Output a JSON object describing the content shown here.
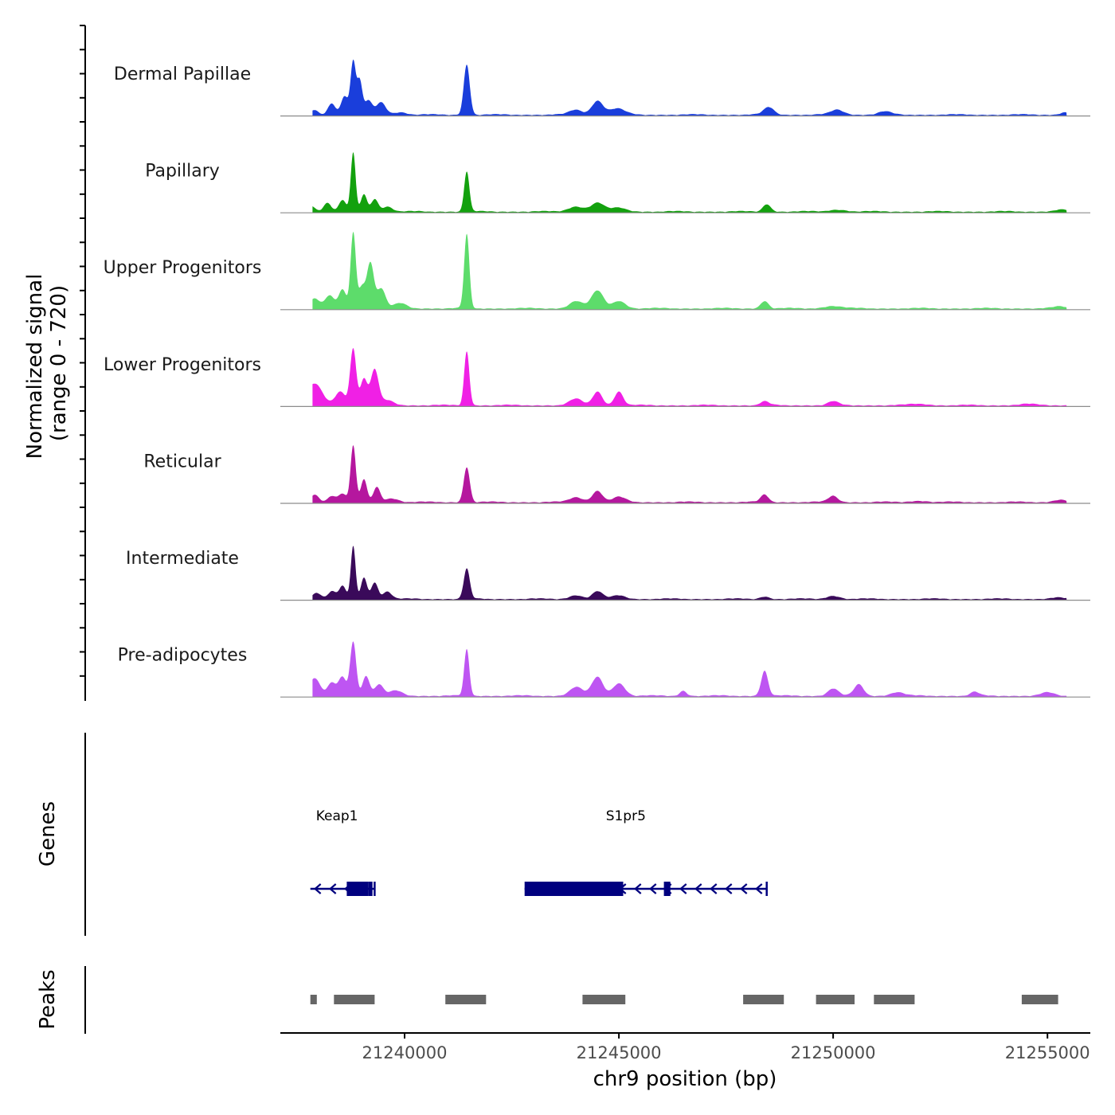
{
  "chart_data": {
    "type": "area",
    "title": "",
    "ylabel_line1": "Normalized signal",
    "ylabel_line2": "(range 0 - 720)",
    "ylim": [
      0,
      720
    ],
    "xlabel": "chr9 position (bp)",
    "xlim": [
      21237100,
      21256000
    ],
    "x_ticks": [
      21240000,
      21245000,
      21250000,
      21255000
    ],
    "x_tick_labels": [
      "21240000",
      "21245000",
      "21250000",
      "21255000"
    ],
    "series": [
      {
        "name": "Dermal Papillae",
        "color": "#1A3EDB",
        "peaks": [
          [
            21237900,
            40,
            80
          ],
          [
            21238300,
            90,
            90
          ],
          [
            21238600,
            150,
            80
          ],
          [
            21238800,
            420,
            60
          ],
          [
            21238950,
            260,
            60
          ],
          [
            21239150,
            110,
            90
          ],
          [
            21239450,
            100,
            110
          ],
          [
            21239900,
            20,
            150
          ],
          [
            21241450,
            400,
            70
          ],
          [
            21244000,
            40,
            150
          ],
          [
            21244500,
            110,
            130
          ],
          [
            21244950,
            50,
            180
          ],
          [
            21248500,
            60,
            120
          ],
          [
            21250100,
            40,
            150
          ],
          [
            21251200,
            25,
            150
          ],
          [
            21255400,
            20,
            100
          ]
        ]
      },
      {
        "name": "Papillary",
        "color": "#13A10E",
        "peaks": [
          [
            21237800,
            50,
            100
          ],
          [
            21238200,
            70,
            90
          ],
          [
            21238550,
            90,
            80
          ],
          [
            21238800,
            470,
            55
          ],
          [
            21239050,
            140,
            70
          ],
          [
            21239300,
            100,
            80
          ],
          [
            21239600,
            40,
            120
          ],
          [
            21241450,
            320,
            60
          ],
          [
            21244000,
            40,
            180
          ],
          [
            21244500,
            70,
            150
          ],
          [
            21245000,
            30,
            180
          ],
          [
            21248450,
            60,
            90
          ],
          [
            21250100,
            15,
            200
          ],
          [
            21255300,
            15,
            150
          ]
        ]
      },
      {
        "name": "Upper Progenitors",
        "color": "#5DDC6B",
        "peaks": [
          [
            21237900,
            80,
            120
          ],
          [
            21238250,
            100,
            100
          ],
          [
            21238550,
            150,
            90
          ],
          [
            21238800,
            600,
            60
          ],
          [
            21239000,
            170,
            80
          ],
          [
            21239200,
            360,
            80
          ],
          [
            21239450,
            160,
            100
          ],
          [
            21239900,
            40,
            150
          ],
          [
            21241450,
            590,
            60
          ],
          [
            21244000,
            60,
            150
          ],
          [
            21244500,
            140,
            140
          ],
          [
            21245000,
            60,
            150
          ],
          [
            21248400,
            60,
            90
          ],
          [
            21250000,
            20,
            200
          ],
          [
            21255300,
            15,
            150
          ]
        ]
      },
      {
        "name": "Lower Progenitors",
        "color": "#F020E5",
        "peaks": [
          [
            21237900,
            170,
            180
          ],
          [
            21238500,
            110,
            120
          ],
          [
            21238800,
            450,
            70
          ],
          [
            21239050,
            210,
            80
          ],
          [
            21239300,
            280,
            90
          ],
          [
            21239600,
            40,
            150
          ],
          [
            21241450,
            430,
            60
          ],
          [
            21244000,
            50,
            150
          ],
          [
            21244500,
            110,
            110
          ],
          [
            21245000,
            110,
            100
          ],
          [
            21248400,
            30,
            100
          ],
          [
            21250000,
            30,
            120
          ],
          [
            21252000,
            12,
            200
          ],
          [
            21254500,
            10,
            200
          ]
        ]
      },
      {
        "name": "Reticular",
        "color": "#B5179E",
        "peaks": [
          [
            21237900,
            60,
            100
          ],
          [
            21238300,
            50,
            90
          ],
          [
            21238550,
            70,
            90
          ],
          [
            21238800,
            450,
            60
          ],
          [
            21239050,
            180,
            70
          ],
          [
            21239350,
            120,
            80
          ],
          [
            21239700,
            30,
            150
          ],
          [
            21241450,
            280,
            70
          ],
          [
            21244000,
            40,
            150
          ],
          [
            21244500,
            90,
            120
          ],
          [
            21245000,
            40,
            150
          ],
          [
            21248400,
            60,
            90
          ],
          [
            21250000,
            50,
            110
          ],
          [
            21252000,
            10,
            200
          ],
          [
            21255300,
            20,
            150
          ]
        ]
      },
      {
        "name": "Intermediate",
        "color": "#3A0A5A",
        "peaks": [
          [
            21237950,
            50,
            100
          ],
          [
            21238300,
            60,
            90
          ],
          [
            21238550,
            100,
            80
          ],
          [
            21238800,
            420,
            55
          ],
          [
            21239050,
            170,
            70
          ],
          [
            21239300,
            130,
            80
          ],
          [
            21239600,
            60,
            100
          ],
          [
            21241450,
            240,
            70
          ],
          [
            21244000,
            30,
            150
          ],
          [
            21244500,
            60,
            120
          ],
          [
            21245000,
            30,
            150
          ],
          [
            21248400,
            20,
            100
          ],
          [
            21250000,
            25,
            150
          ],
          [
            21255200,
            10,
            150
          ]
        ]
      },
      {
        "name": "Pre-adipocytes",
        "color": "#BE55F2",
        "peaks": [
          [
            21237900,
            140,
            120
          ],
          [
            21238300,
            100,
            100
          ],
          [
            21238550,
            150,
            90
          ],
          [
            21238800,
            430,
            70
          ],
          [
            21239100,
            160,
            80
          ],
          [
            21239400,
            90,
            100
          ],
          [
            21239800,
            40,
            150
          ],
          [
            21241450,
            370,
            60
          ],
          [
            21244000,
            70,
            150
          ],
          [
            21244500,
            150,
            130
          ],
          [
            21245000,
            100,
            140
          ],
          [
            21246500,
            40,
            80
          ],
          [
            21248400,
            200,
            80
          ],
          [
            21250000,
            60,
            120
          ],
          [
            21250600,
            90,
            110
          ],
          [
            21251500,
            30,
            150
          ],
          [
            21253300,
            30,
            100
          ],
          [
            21255000,
            25,
            150
          ]
        ]
      }
    ],
    "genes_label": "Genes",
    "genes": [
      {
        "name": "Keap1",
        "color": "#00007F",
        "strand": "-",
        "start": 21237800,
        "end": 21239300,
        "exons": [
          [
            21238650,
            21238950
          ],
          [
            21238950,
            21239150
          ],
          [
            21239150,
            21239250
          ]
        ]
      },
      {
        "name": "S1pr5",
        "color": "#00007F",
        "strand": "-",
        "start": 21242800,
        "end": 21248450,
        "exons": [
          [
            21242800,
            21245100
          ],
          [
            21246050,
            21246200
          ]
        ]
      }
    ],
    "peaks_label": "Peaks",
    "peak_color": "#666666",
    "peaks": [
      [
        21237800,
        21237950
      ],
      [
        21238350,
        21239300
      ],
      [
        21240950,
        21241900
      ],
      [
        21244150,
        21245150
      ],
      [
        21247900,
        21248850
      ],
      [
        21249600,
        21250500
      ],
      [
        21250950,
        21251900
      ],
      [
        21254400,
        21255250
      ]
    ]
  }
}
